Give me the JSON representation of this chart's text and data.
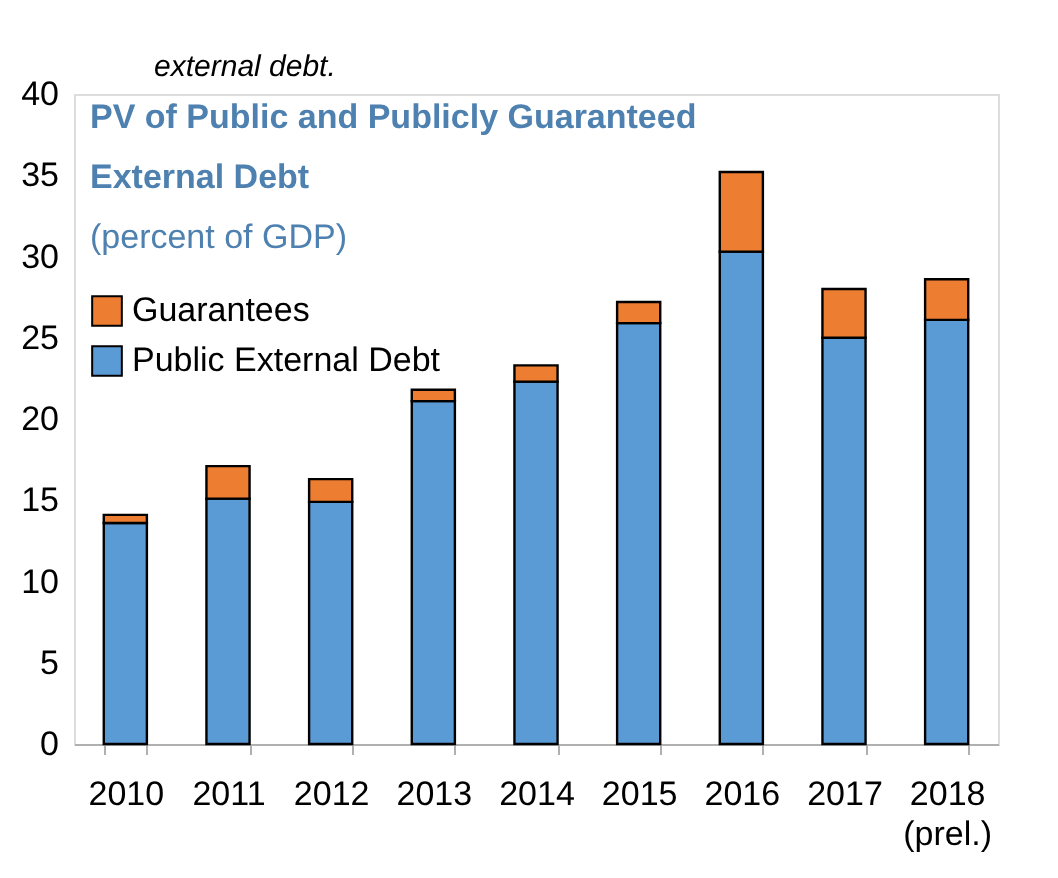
{
  "chart_data": {
    "type": "bar",
    "stacked": true,
    "title": "PV of Public and Publicly Guaranteed External Debt",
    "subtitle": "(percent of GDP)",
    "annotations": [
      "external debt."
    ],
    "categories": [
      "2010",
      "2011",
      "2012",
      "2013",
      "2014",
      "2015",
      "2016",
      "2017",
      "2018\n(prel.)"
    ],
    "series": [
      {
        "name": "Public External Debt",
        "color": "#5b9bd5",
        "values": [
          13.6,
          15.1,
          14.9,
          21.1,
          22.3,
          25.9,
          30.3,
          25.0,
          26.1
        ]
      },
      {
        "name": "Guarantees",
        "color": "#ed7d31",
        "values": [
          0.5,
          2.0,
          1.4,
          0.7,
          1.0,
          1.3,
          4.9,
          3.0,
          2.5
        ]
      }
    ],
    "ylim": [
      0,
      40
    ],
    "yticks": [
      0,
      5,
      10,
      15,
      20,
      25,
      30,
      35,
      40
    ],
    "grid": false,
    "legend": "top left"
  }
}
